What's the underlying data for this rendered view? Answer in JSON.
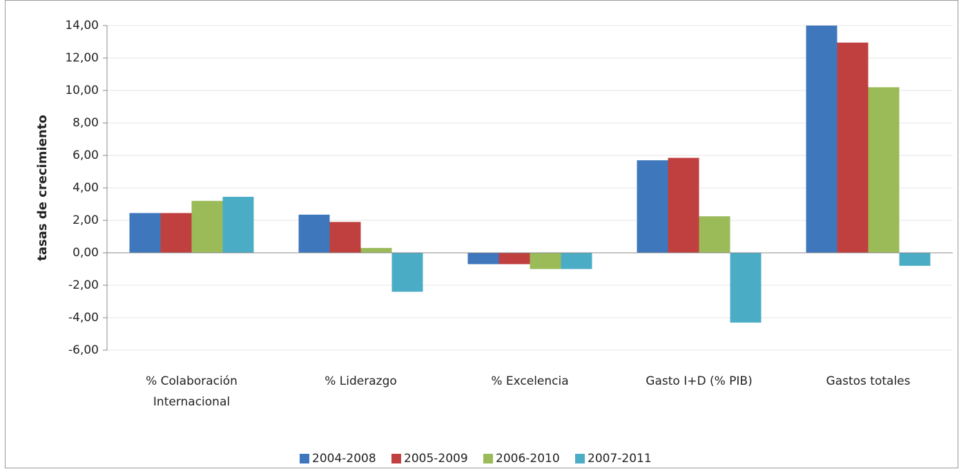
{
  "chart_data": {
    "type": "bar",
    "y_label": "tasas de crecimiento",
    "categories": [
      "% Colaboración Internacional",
      "% Liderazgo",
      "% Excelencia",
      "Gasto I+D (% PIB)",
      "Gastos totales"
    ],
    "series": [
      {
        "name": "2004-2008",
        "color": "#3f77bd",
        "values": [
          2.45,
          2.35,
          -0.7,
          5.7,
          14.0
        ]
      },
      {
        "name": "2005-2009",
        "color": "#c0403f",
        "values": [
          2.45,
          1.9,
          -0.7,
          5.85,
          12.95
        ]
      },
      {
        "name": "2006-2010",
        "color": "#9bbb59",
        "values": [
          3.2,
          0.3,
          -1.0,
          2.25,
          10.2
        ]
      },
      {
        "name": "2007-2011",
        "color": "#4bacc6",
        "values": [
          3.45,
          -2.4,
          -1.0,
          -4.3,
          -0.8
        ]
      }
    ],
    "ylim": [
      -6,
      14
    ],
    "yticks": [
      {
        "value": -6,
        "label": "-6,00"
      },
      {
        "value": -4,
        "label": "-4,00"
      },
      {
        "value": -2,
        "label": "-2,00"
      },
      {
        "value": 0,
        "label": "0,00"
      },
      {
        "value": 2,
        "label": "2,00"
      },
      {
        "value": 4,
        "label": "4,00"
      },
      {
        "value": 6,
        "label": "6,00"
      },
      {
        "value": 8,
        "label": "8,00"
      },
      {
        "value": 10,
        "label": "10,00"
      },
      {
        "value": 12,
        "label": "12,00"
      },
      {
        "value": 14,
        "label": "14,00"
      }
    ],
    "grid": true,
    "legend": "bottom"
  }
}
